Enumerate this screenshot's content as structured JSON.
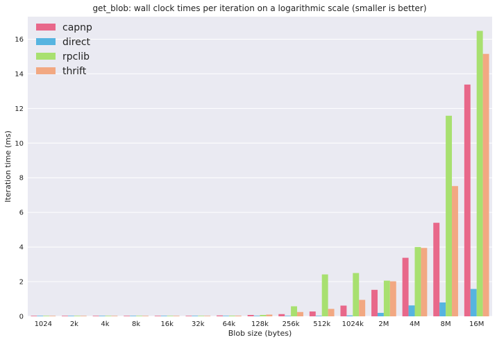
{
  "chart_data": {
    "type": "bar",
    "title": "get_blob: wall clock times per iteration on a logarithmic scale (smaller is better)",
    "xlabel": "Blob size (bytes)",
    "ylabel": "Iteration time (ms)",
    "ylim": [
      0,
      17.3
    ],
    "yticks": [
      0,
      2,
      4,
      6,
      8,
      10,
      12,
      14,
      16
    ],
    "grid": true,
    "legend_position": "top-left",
    "categories": [
      "1024",
      "2k",
      "4k",
      "8k",
      "16k",
      "32k",
      "64k",
      "128k",
      "256k",
      "512k",
      "1024k",
      "2M",
      "4M",
      "8M",
      "16M"
    ],
    "series": [
      {
        "name": "capnp",
        "color": "#e8688a",
        "values": [
          0.02,
          0.02,
          0.02,
          0.02,
          0.02,
          0.03,
          0.05,
          0.08,
          0.13,
          0.28,
          0.62,
          1.53,
          3.38,
          5.4,
          13.38
        ]
      },
      {
        "name": "direct",
        "color": "#56b4e0",
        "values": [
          0.01,
          0.01,
          0.01,
          0.01,
          0.01,
          0.01,
          0.01,
          0.01,
          0.01,
          0.02,
          0.05,
          0.2,
          0.63,
          0.8,
          1.58
        ]
      },
      {
        "name": "rpclib",
        "color": "#a8e070",
        "values": [
          0.02,
          0.02,
          0.02,
          0.02,
          0.02,
          0.03,
          0.04,
          0.08,
          0.58,
          2.42,
          2.5,
          2.06,
          4.0,
          11.58,
          16.48
        ]
      },
      {
        "name": "thrift",
        "color": "#f2a882",
        "values": [
          0.02,
          0.02,
          0.02,
          0.02,
          0.02,
          0.03,
          0.04,
          0.1,
          0.25,
          0.43,
          0.95,
          2.02,
          3.95,
          7.52,
          15.15
        ]
      }
    ]
  }
}
